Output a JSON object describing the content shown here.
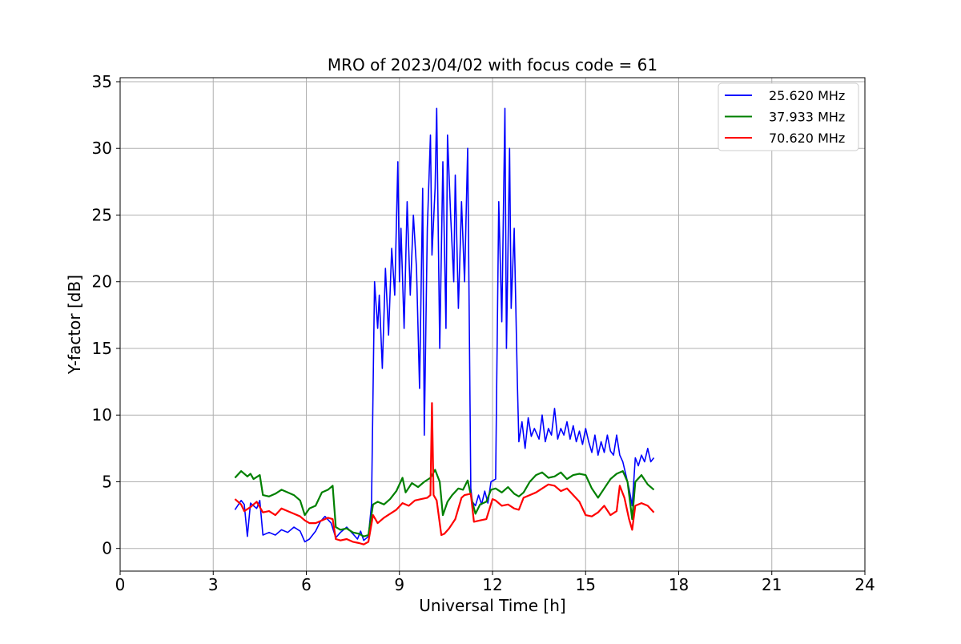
{
  "chart_data": {
    "type": "line",
    "title": "MRO of 2023/04/02 with focus code = 61",
    "xlabel": "Universal Time [h]",
    "ylabel": "Y-factor [dB]",
    "xlim": [
      0,
      24
    ],
    "ylim": [
      -1.7,
      35.3
    ],
    "xticks": [
      0,
      3,
      6,
      9,
      12,
      15,
      18,
      21,
      24
    ],
    "yticks": [
      0,
      5,
      10,
      15,
      20,
      25,
      30,
      35
    ],
    "grid": true,
    "legend_position": "top-right",
    "series": [
      {
        "name": "25.620 MHz",
        "color": "#0000ff",
        "x": [
          3.7,
          3.9,
          4.0,
          4.1,
          4.2,
          4.4,
          4.5,
          4.6,
          4.8,
          5.0,
          5.2,
          5.4,
          5.6,
          5.8,
          5.95,
          6.1,
          6.3,
          6.45,
          6.6,
          6.8,
          6.95,
          7.1,
          7.3,
          7.5,
          7.65,
          7.75,
          7.85,
          8.0,
          8.1,
          8.2,
          8.3,
          8.35,
          8.45,
          8.55,
          8.65,
          8.75,
          8.85,
          8.95,
          9.0,
          9.05,
          9.15,
          9.25,
          9.35,
          9.45,
          9.55,
          9.65,
          9.75,
          9.8,
          9.9,
          10.0,
          10.05,
          10.15,
          10.2,
          10.3,
          10.4,
          10.5,
          10.55,
          10.65,
          10.75,
          10.8,
          10.9,
          11.0,
          11.1,
          11.2,
          11.3,
          11.35,
          11.45,
          11.55,
          11.65,
          11.75,
          11.85,
          11.95,
          12.1,
          12.2,
          12.3,
          12.4,
          12.45,
          12.55,
          12.6,
          12.7,
          12.8,
          12.85,
          12.95,
          13.05,
          13.15,
          13.25,
          13.35,
          13.5,
          13.6,
          13.7,
          13.8,
          13.9,
          14.0,
          14.1,
          14.2,
          14.3,
          14.4,
          14.5,
          14.6,
          14.7,
          14.8,
          14.9,
          15.0,
          15.1,
          15.2,
          15.3,
          15.4,
          15.5,
          15.6,
          15.7,
          15.8,
          15.9,
          16.0,
          16.1,
          16.2,
          16.3,
          16.4,
          16.5,
          16.6,
          16.7,
          16.8,
          16.9,
          17.0,
          17.1,
          17.2
        ],
        "y": [
          2.9,
          3.6,
          3.3,
          0.9,
          3.4,
          3.0,
          3.6,
          1.0,
          1.2,
          1.0,
          1.4,
          1.2,
          1.6,
          1.3,
          0.5,
          0.7,
          1.3,
          2.0,
          2.4,
          1.9,
          0.8,
          1.2,
          1.6,
          1.1,
          0.7,
          1.3,
          0.6,
          0.9,
          3.3,
          20.0,
          16.5,
          19.0,
          13.5,
          21.0,
          16.0,
          22.5,
          19.0,
          29.0,
          20.0,
          24.0,
          16.5,
          26.0,
          19.0,
          25.0,
          21.0,
          12.0,
          27.0,
          8.5,
          24.0,
          31.0,
          22.0,
          27.0,
          33.0,
          15.0,
          29.0,
          16.5,
          31.0,
          25.0,
          20.0,
          28.0,
          18.0,
          26.0,
          20.0,
          30.0,
          4.5,
          3.5,
          3.2,
          4.0,
          3.3,
          4.3,
          3.4,
          5.0,
          5.2,
          26.0,
          17.0,
          33.0,
          15.0,
          30.0,
          18.0,
          24.0,
          12.5,
          8.0,
          9.5,
          7.5,
          9.8,
          8.4,
          9.0,
          8.2,
          10.0,
          8.0,
          9.0,
          8.5,
          10.5,
          8.2,
          9.0,
          8.5,
          9.5,
          8.2,
          9.2,
          8.0,
          8.8,
          7.8,
          9.0,
          8.0,
          7.2,
          8.5,
          7.0,
          8.0,
          7.2,
          8.5,
          7.3,
          7.0,
          8.5,
          7.0,
          6.5,
          5.5,
          4.5,
          3.2,
          6.8,
          6.2,
          7.0,
          6.5,
          7.5,
          6.5,
          6.8
        ]
      },
      {
        "name": "37.933 MHz",
        "color": "#008000",
        "x": [
          3.7,
          3.9,
          4.1,
          4.2,
          4.3,
          4.5,
          4.6,
          4.8,
          5.0,
          5.2,
          5.4,
          5.6,
          5.8,
          5.95,
          6.1,
          6.3,
          6.5,
          6.7,
          6.85,
          6.95,
          7.1,
          7.3,
          7.5,
          7.7,
          7.85,
          8.0,
          8.15,
          8.3,
          8.5,
          8.7,
          8.9,
          9.1,
          9.2,
          9.4,
          9.6,
          9.8,
          10.0,
          10.15,
          10.3,
          10.4,
          10.55,
          10.7,
          10.9,
          11.05,
          11.2,
          11.35,
          11.45,
          11.6,
          11.8,
          11.95,
          12.1,
          12.3,
          12.5,
          12.7,
          12.85,
          13.0,
          13.2,
          13.4,
          13.6,
          13.8,
          14.0,
          14.2,
          14.4,
          14.6,
          14.8,
          15.0,
          15.2,
          15.4,
          15.6,
          15.8,
          16.0,
          16.2,
          16.35,
          16.5,
          16.6,
          16.8,
          17.0,
          17.2
        ],
        "y": [
          5.3,
          5.8,
          5.4,
          5.6,
          5.2,
          5.5,
          4.0,
          3.9,
          4.1,
          4.4,
          4.2,
          4.0,
          3.6,
          2.5,
          3.0,
          3.2,
          4.2,
          4.4,
          4.7,
          1.6,
          1.4,
          1.5,
          1.2,
          1.1,
          0.9,
          1.0,
          3.3,
          3.5,
          3.3,
          3.7,
          4.3,
          5.3,
          4.2,
          4.9,
          4.6,
          5.0,
          5.3,
          5.9,
          5.0,
          2.5,
          3.5,
          4.0,
          4.5,
          4.4,
          5.1,
          3.5,
          2.6,
          3.3,
          3.5,
          4.4,
          4.5,
          4.2,
          4.6,
          4.1,
          3.9,
          4.2,
          5.0,
          5.5,
          5.7,
          5.3,
          5.4,
          5.7,
          5.2,
          5.5,
          5.6,
          5.5,
          4.5,
          3.8,
          4.5,
          5.2,
          5.6,
          5.8,
          5.0,
          2.2,
          5.0,
          5.5,
          4.8,
          4.4
        ]
      },
      {
        "name": "70.620 MHz",
        "color": "#ff0000",
        "x": [
          3.7,
          3.9,
          4.0,
          4.2,
          4.4,
          4.6,
          4.8,
          5.0,
          5.2,
          5.4,
          5.6,
          5.8,
          5.95,
          6.1,
          6.3,
          6.5,
          6.7,
          6.85,
          6.95,
          7.1,
          7.3,
          7.5,
          7.7,
          7.85,
          8.0,
          8.15,
          8.3,
          8.5,
          8.7,
          8.9,
          9.1,
          9.3,
          9.5,
          9.7,
          9.9,
          10.0,
          10.05,
          10.1,
          10.2,
          10.35,
          10.45,
          10.6,
          10.8,
          11.0,
          11.1,
          11.3,
          11.4,
          11.6,
          11.8,
          12.0,
          12.1,
          12.3,
          12.5,
          12.7,
          12.85,
          13.0,
          13.2,
          13.4,
          13.6,
          13.8,
          14.0,
          14.2,
          14.4,
          14.6,
          14.8,
          15.0,
          15.2,
          15.4,
          15.6,
          15.8,
          16.0,
          16.1,
          16.25,
          16.4,
          16.5,
          16.6,
          16.8,
          17.0,
          17.2
        ],
        "y": [
          3.7,
          3.3,
          2.8,
          3.1,
          3.5,
          2.7,
          2.8,
          2.5,
          3.0,
          2.8,
          2.6,
          2.4,
          2.1,
          1.9,
          1.9,
          2.1,
          2.3,
          2.2,
          0.7,
          0.6,
          0.7,
          0.5,
          0.4,
          0.3,
          0.5,
          2.5,
          1.9,
          2.3,
          2.6,
          2.9,
          3.4,
          3.2,
          3.6,
          3.7,
          3.8,
          4.0,
          10.9,
          4.0,
          3.6,
          1.0,
          1.1,
          1.5,
          2.2,
          3.8,
          4.0,
          4.1,
          2.0,
          2.1,
          2.2,
          3.7,
          3.6,
          3.2,
          3.3,
          3.0,
          2.9,
          3.8,
          4.0,
          4.2,
          4.5,
          4.8,
          4.7,
          4.3,
          4.5,
          4.0,
          3.5,
          2.5,
          2.4,
          2.7,
          3.2,
          2.5,
          2.8,
          4.7,
          3.8,
          2.2,
          1.4,
          3.2,
          3.4,
          3.2,
          2.7
        ]
      }
    ]
  }
}
